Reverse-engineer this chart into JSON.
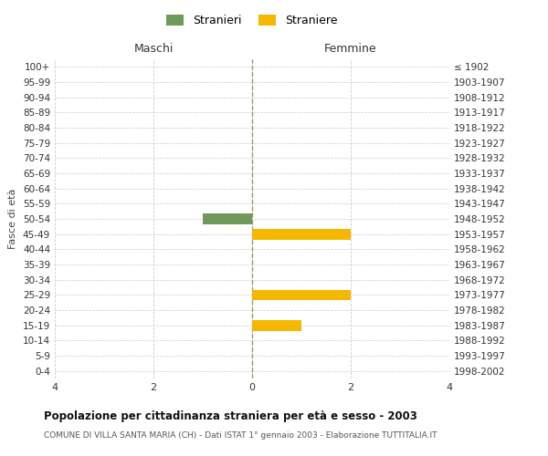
{
  "age_groups": [
    "100+",
    "95-99",
    "90-94",
    "85-89",
    "80-84",
    "75-79",
    "70-74",
    "65-69",
    "60-64",
    "55-59",
    "50-54",
    "45-49",
    "40-44",
    "35-39",
    "30-34",
    "25-29",
    "20-24",
    "15-19",
    "10-14",
    "5-9",
    "0-4"
  ],
  "birth_years": [
    "≤ 1902",
    "1903-1907",
    "1908-1912",
    "1913-1917",
    "1918-1922",
    "1923-1927",
    "1928-1932",
    "1933-1937",
    "1938-1942",
    "1943-1947",
    "1948-1952",
    "1953-1957",
    "1958-1962",
    "1963-1967",
    "1968-1972",
    "1973-1977",
    "1978-1982",
    "1983-1987",
    "1988-1992",
    "1993-1997",
    "1998-2002"
  ],
  "maschi": [
    0,
    0,
    0,
    0,
    0,
    0,
    0,
    0,
    0,
    0,
    1,
    0,
    0,
    0,
    0,
    0,
    0,
    0,
    0,
    0,
    0
  ],
  "femmine": [
    0,
    0,
    0,
    0,
    0,
    0,
    0,
    0,
    0,
    0,
    0,
    2,
    0,
    0,
    0,
    2,
    0,
    1,
    0,
    0,
    0
  ],
  "xlim": 4,
  "xticks": [
    -4,
    -2,
    0,
    2,
    4
  ],
  "xtick_labels": [
    "4",
    "2",
    "0",
    "2",
    "4"
  ],
  "color_maschi": "#6f9a5b",
  "color_femmine": "#f5b800",
  "title": "Popolazione per cittadinanza straniera per età e sesso - 2003",
  "subtitle": "COMUNE DI VILLA SANTA MARIA (CH) - Dati ISTAT 1° gennaio 2003 - Elaborazione TUTTITALIA.IT",
  "ylabel_left": "Fasce di età",
  "label_maschi": "Maschi",
  "label_femmine": "Femmine",
  "legend_stranieri": "Stranieri",
  "legend_straniere": "Straniere",
  "bar_height": 0.7,
  "grid_color": "#cccccc",
  "bg_color": "#ffffff",
  "fig_width": 6.0,
  "fig_height": 5.0
}
